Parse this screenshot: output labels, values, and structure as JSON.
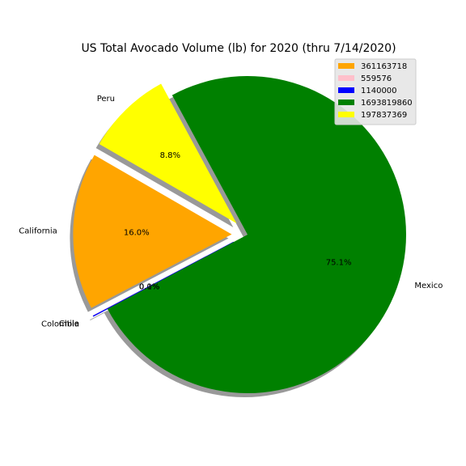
{
  "chart_data": {
    "type": "pie",
    "title": "US Total Avocado Volume (lb) for 2020 (thru 7/14/2020)",
    "slices": [
      {
        "label": "California",
        "value": 361163718,
        "pct_label": "16.0%",
        "color": "#ffa500",
        "explode": true
      },
      {
        "label": "Chile",
        "value": 559576,
        "pct_label": "0.0%",
        "color": "#ffc0cb",
        "explode": true
      },
      {
        "label": "Colombia",
        "value": 1140000,
        "pct_label": "0.1%",
        "color": "#0000ff",
        "explode": true
      },
      {
        "label": "Mexico",
        "value": 1693819860,
        "pct_label": "75.1%",
        "color": "#008000",
        "explode": false
      },
      {
        "label": "Peru",
        "value": 197837369,
        "pct_label": "8.8%",
        "color": "#ffff00",
        "explode": true
      }
    ],
    "legend": {
      "placement": "top-right",
      "entries": [
        "361163718",
        "559576",
        "1140000",
        "1693819860",
        "197837369"
      ]
    },
    "shadow": true
  }
}
